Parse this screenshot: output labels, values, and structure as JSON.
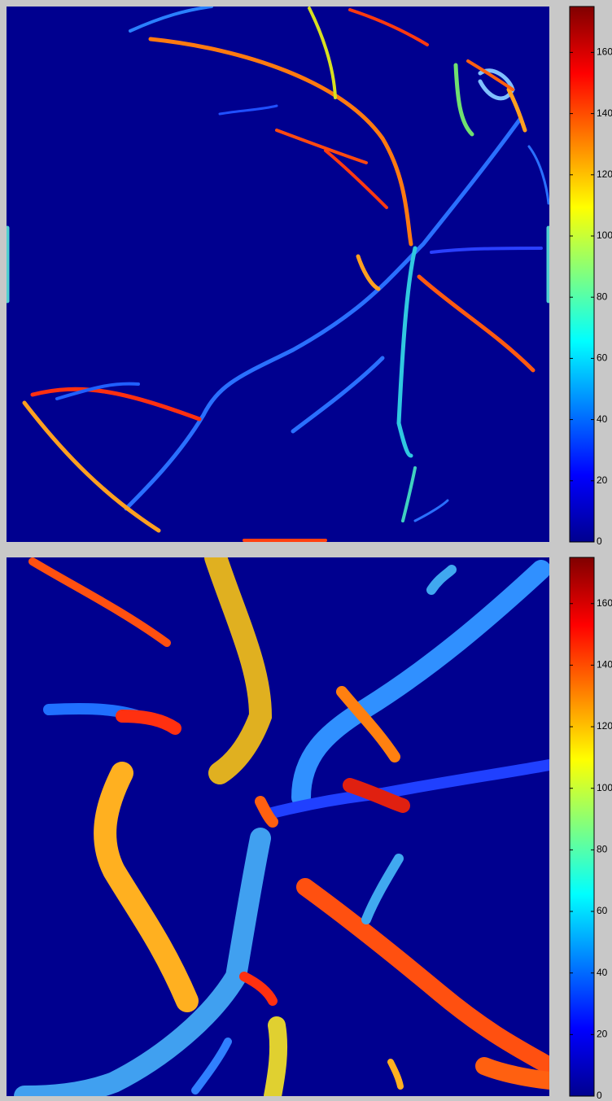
{
  "panels": [
    {
      "colorbar": {
        "range": [
          0,
          175
        ],
        "ticks": [
          0,
          20,
          40,
          60,
          80,
          100,
          120,
          140,
          160
        ]
      }
    },
    {
      "colorbar": {
        "range": [
          0,
          175
        ],
        "ticks": [
          0,
          20,
          40,
          60,
          80,
          100,
          120,
          140,
          160
        ]
      }
    }
  ]
}
